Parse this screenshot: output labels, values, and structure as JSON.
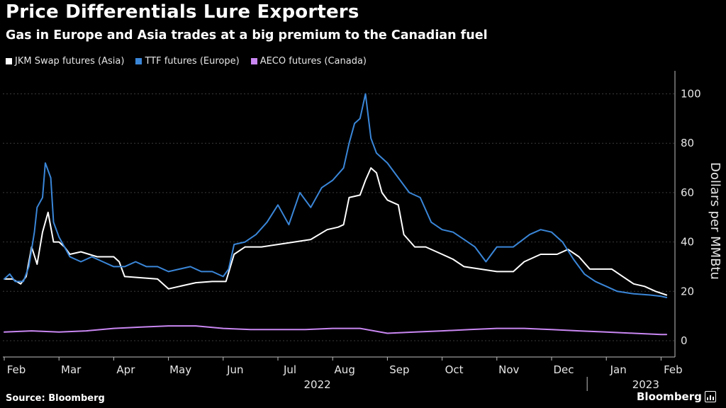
{
  "colors": {
    "jkm": "#ffffff",
    "ttf": "#3a86d8",
    "aeco": "#c987f2",
    "grid": "#3a3a3a",
    "background": "#000000"
  },
  "header": {
    "title": "Price Differentials Lure Exporters",
    "subtitle": "Gas in Europe and Asia trades at a big premium to the Canadian fuel"
  },
  "footer": {
    "source": "Source: Bloomberg",
    "brand": "Bloomberg"
  },
  "chart_data": {
    "type": "line",
    "title": "Price Differentials Lure Exporters",
    "subtitle": "Gas in Europe and Asia trades at a big premium to the Canadian fuel",
    "xlabel": "",
    "ylabel": "Dollars per MMBtu",
    "ylim": [
      0,
      100
    ],
    "yticks": [
      0,
      20,
      40,
      60,
      80,
      100
    ],
    "grid": true,
    "legend_position": "top-left",
    "x_unit": "months since Feb 1, 2022",
    "xlim": [
      0,
      12.15
    ],
    "month_ticks": [
      {
        "x": 0,
        "label": "Feb"
      },
      {
        "x": 1,
        "label": "Mar"
      },
      {
        "x": 2,
        "label": "Apr"
      },
      {
        "x": 3,
        "label": "May"
      },
      {
        "x": 4,
        "label": "Jun"
      },
      {
        "x": 5,
        "label": "Jul"
      },
      {
        "x": 6,
        "label": "Aug"
      },
      {
        "x": 7,
        "label": "Sep"
      },
      {
        "x": 8,
        "label": "Oct"
      },
      {
        "x": 9,
        "label": "Nov"
      },
      {
        "x": 10,
        "label": "Dec"
      },
      {
        "x": 11,
        "label": "Jan"
      },
      {
        "x": 12,
        "label": "Feb"
      }
    ],
    "year_labels": [
      {
        "x": 5.5,
        "label": "2022"
      },
      {
        "x": 11.5,
        "label": "2023"
      }
    ],
    "year_divider_x": 10.65,
    "series": [
      {
        "name": "JKM Swap futures (Asia)",
        "color": "#ffffff",
        "points": [
          [
            0,
            25
          ],
          [
            0.15,
            25
          ],
          [
            0.3,
            23
          ],
          [
            0.4,
            26
          ],
          [
            0.5,
            38
          ],
          [
            0.6,
            31
          ],
          [
            0.7,
            44
          ],
          [
            0.8,
            52
          ],
          [
            0.9,
            40
          ],
          [
            1.0,
            40
          ],
          [
            1.1,
            38
          ],
          [
            1.2,
            35
          ],
          [
            1.4,
            36
          ],
          [
            1.7,
            34
          ],
          [
            2.0,
            34
          ],
          [
            2.1,
            32
          ],
          [
            2.2,
            26
          ],
          [
            2.5,
            25.5
          ],
          [
            2.8,
            25
          ],
          [
            3.0,
            21
          ],
          [
            3.2,
            22
          ],
          [
            3.5,
            23.5
          ],
          [
            3.8,
            24
          ],
          [
            4.05,
            24
          ],
          [
            4.2,
            35
          ],
          [
            4.4,
            38
          ],
          [
            4.7,
            38
          ],
          [
            5.0,
            39
          ],
          [
            5.3,
            40
          ],
          [
            5.6,
            41
          ],
          [
            5.9,
            45
          ],
          [
            6.1,
            46
          ],
          [
            6.2,
            47
          ],
          [
            6.3,
            58
          ],
          [
            6.5,
            59
          ],
          [
            6.6,
            65
          ],
          [
            6.7,
            70
          ],
          [
            6.8,
            68
          ],
          [
            6.9,
            60
          ],
          [
            7.0,
            57
          ],
          [
            7.2,
            55
          ],
          [
            7.3,
            43
          ],
          [
            7.5,
            38
          ],
          [
            7.7,
            38
          ],
          [
            8.0,
            35
          ],
          [
            8.2,
            33
          ],
          [
            8.4,
            30
          ],
          [
            8.7,
            29
          ],
          [
            9.0,
            28
          ],
          [
            9.3,
            28
          ],
          [
            9.5,
            32
          ],
          [
            9.8,
            35
          ],
          [
            10.1,
            35
          ],
          [
            10.3,
            37
          ],
          [
            10.5,
            34
          ],
          [
            10.7,
            29
          ],
          [
            10.9,
            29
          ],
          [
            11.1,
            29
          ],
          [
            11.3,
            26
          ],
          [
            11.5,
            23
          ],
          [
            11.7,
            22
          ],
          [
            11.9,
            20
          ],
          [
            12.1,
            18.5
          ]
        ]
      },
      {
        "name": "TTF futures (Europe)",
        "color": "#3a86d8",
        "points": [
          [
            0,
            25
          ],
          [
            0.1,
            27
          ],
          [
            0.2,
            24
          ],
          [
            0.35,
            24
          ],
          [
            0.45,
            30
          ],
          [
            0.55,
            44
          ],
          [
            0.6,
            54
          ],
          [
            0.7,
            58
          ],
          [
            0.75,
            72
          ],
          [
            0.85,
            66
          ],
          [
            0.9,
            48
          ],
          [
            1.0,
            42
          ],
          [
            1.2,
            34
          ],
          [
            1.4,
            32
          ],
          [
            1.6,
            34
          ],
          [
            1.8,
            32
          ],
          [
            2.0,
            30
          ],
          [
            2.2,
            30
          ],
          [
            2.4,
            32
          ],
          [
            2.6,
            30
          ],
          [
            2.8,
            30
          ],
          [
            3.0,
            28
          ],
          [
            3.2,
            29
          ],
          [
            3.4,
            30
          ],
          [
            3.6,
            28
          ],
          [
            3.8,
            28
          ],
          [
            4.0,
            26
          ],
          [
            4.1,
            29
          ],
          [
            4.2,
            39
          ],
          [
            4.4,
            40
          ],
          [
            4.6,
            43
          ],
          [
            4.8,
            48
          ],
          [
            5.0,
            55
          ],
          [
            5.2,
            47
          ],
          [
            5.4,
            60
          ],
          [
            5.6,
            54
          ],
          [
            5.8,
            62
          ],
          [
            6.0,
            65
          ],
          [
            6.2,
            70
          ],
          [
            6.3,
            80
          ],
          [
            6.4,
            88
          ],
          [
            6.5,
            90
          ],
          [
            6.6,
            100
          ],
          [
            6.7,
            82
          ],
          [
            6.8,
            76
          ],
          [
            7.0,
            72
          ],
          [
            7.2,
            66
          ],
          [
            7.4,
            60
          ],
          [
            7.6,
            58
          ],
          [
            7.8,
            48
          ],
          [
            8.0,
            45
          ],
          [
            8.2,
            44
          ],
          [
            8.4,
            41
          ],
          [
            8.6,
            38
          ],
          [
            8.8,
            32
          ],
          [
            9.0,
            38
          ],
          [
            9.3,
            38
          ],
          [
            9.6,
            43
          ],
          [
            9.8,
            45
          ],
          [
            10.0,
            44
          ],
          [
            10.2,
            40
          ],
          [
            10.4,
            33
          ],
          [
            10.6,
            27
          ],
          [
            10.8,
            24
          ],
          [
            11.0,
            22
          ],
          [
            11.2,
            20
          ],
          [
            11.5,
            19
          ],
          [
            11.8,
            18.5
          ],
          [
            12.0,
            18
          ],
          [
            12.1,
            17.5
          ]
        ]
      },
      {
        "name": "AECO futures (Canada)",
        "color": "#c987f2",
        "points": [
          [
            0,
            3.5
          ],
          [
            0.5,
            4
          ],
          [
            1.0,
            3.5
          ],
          [
            1.5,
            4
          ],
          [
            2.0,
            5
          ],
          [
            2.5,
            5.5
          ],
          [
            3.0,
            6
          ],
          [
            3.5,
            6
          ],
          [
            4.0,
            5
          ],
          [
            4.5,
            4.5
          ],
          [
            5.0,
            4.5
          ],
          [
            5.5,
            4.5
          ],
          [
            6.0,
            5
          ],
          [
            6.5,
            5
          ],
          [
            7.0,
            3
          ],
          [
            7.5,
            3.5
          ],
          [
            8.0,
            4
          ],
          [
            8.5,
            4.5
          ],
          [
            9.0,
            5
          ],
          [
            9.5,
            5
          ],
          [
            10.0,
            4.5
          ],
          [
            10.5,
            4
          ],
          [
            11.0,
            3.5
          ],
          [
            11.5,
            3
          ],
          [
            12.0,
            2.5
          ],
          [
            12.1,
            2.5
          ]
        ]
      }
    ]
  }
}
